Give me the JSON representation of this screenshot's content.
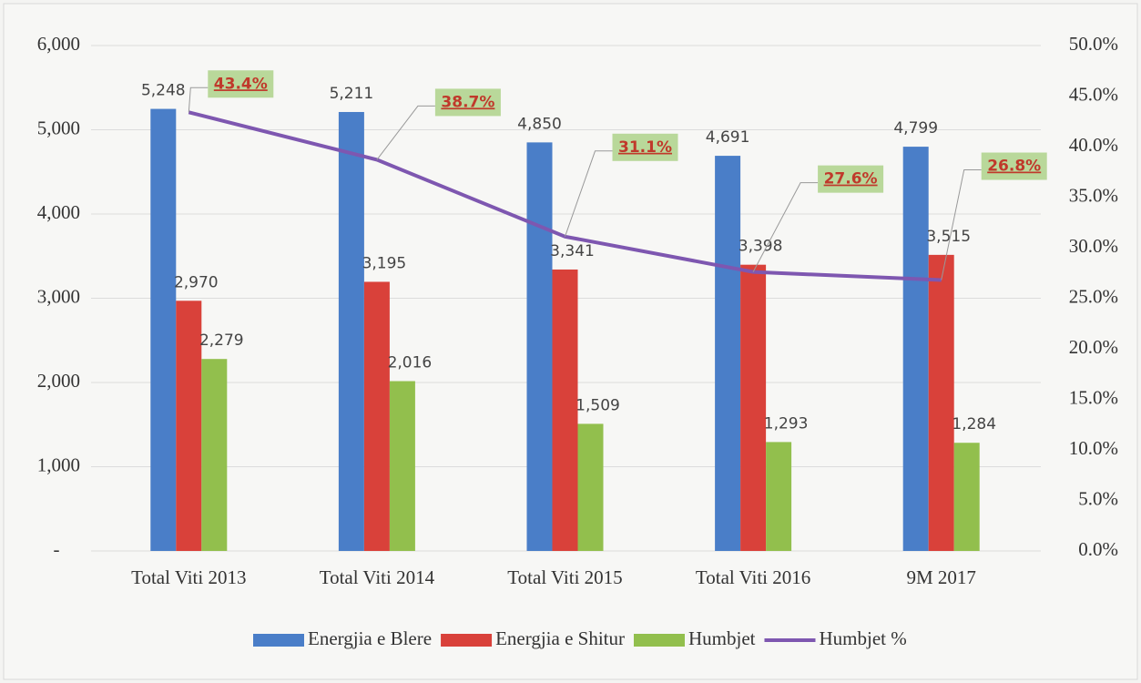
{
  "chart_data": {
    "type": "bar",
    "categories": [
      "Total Viti 2013",
      "Total Viti 2014",
      "Total Viti 2015",
      "Total Viti 2016",
      "9M 2017"
    ],
    "series": [
      {
        "name": "Energjia e Blere",
        "color": "#4a7ec8",
        "values": [
          5248,
          5211,
          4850,
          4691,
          4799
        ],
        "value_labels": [
          "5,248",
          "5,211",
          "4,850",
          "4,691",
          "4,799"
        ]
      },
      {
        "name": "Energjia e Shitur",
        "color": "#d9413a",
        "values": [
          2970,
          3195,
          3341,
          3398,
          3515
        ],
        "value_labels": [
          "2,970",
          "3,195",
          "3,341",
          "3,398",
          "3,515"
        ]
      },
      {
        "name": "Humbjet",
        "color": "#92bf4d",
        "values": [
          2279,
          2016,
          1509,
          1293,
          1284
        ],
        "value_labels": [
          "2,279",
          "2,016",
          "1,509",
          "1,293",
          "1,284"
        ]
      },
      {
        "name": "Humbjet %",
        "type": "line",
        "axis": "y2",
        "color": "#7e57b0",
        "values": [
          43.4,
          38.7,
          31.1,
          27.6,
          26.8
        ],
        "value_labels": [
          "43.4%",
          "38.7%",
          "31.1%",
          "27.6%",
          "26.8%"
        ]
      }
    ],
    "ylim": [
      0,
      6000
    ],
    "yticks": [
      {
        "value": 0,
        "label": "-"
      },
      {
        "value": 1000,
        "label": "1,000"
      },
      {
        "value": 2000,
        "label": "2,000"
      },
      {
        "value": 3000,
        "label": "3,000"
      },
      {
        "value": 4000,
        "label": "4,000"
      },
      {
        "value": 5000,
        "label": "5,000"
      },
      {
        "value": 6000,
        "label": "6,000"
      }
    ],
    "y2lim": [
      0,
      50
    ],
    "y2ticks": [
      {
        "value": 0,
        "label": "0.0%"
      },
      {
        "value": 5,
        "label": "5.0%"
      },
      {
        "value": 10,
        "label": "10.0%"
      },
      {
        "value": 15,
        "label": "15.0%"
      },
      {
        "value": 20,
        "label": "20.0%"
      },
      {
        "value": 25,
        "label": "25.0%"
      },
      {
        "value": 30,
        "label": "30.0%"
      },
      {
        "value": 35,
        "label": "35.0%"
      },
      {
        "value": 40,
        "label": "40.0%"
      },
      {
        "value": 45,
        "label": "45.0%"
      },
      {
        "value": 50,
        "label": "50.0%"
      }
    ],
    "grid": true,
    "legend": "bottom"
  }
}
